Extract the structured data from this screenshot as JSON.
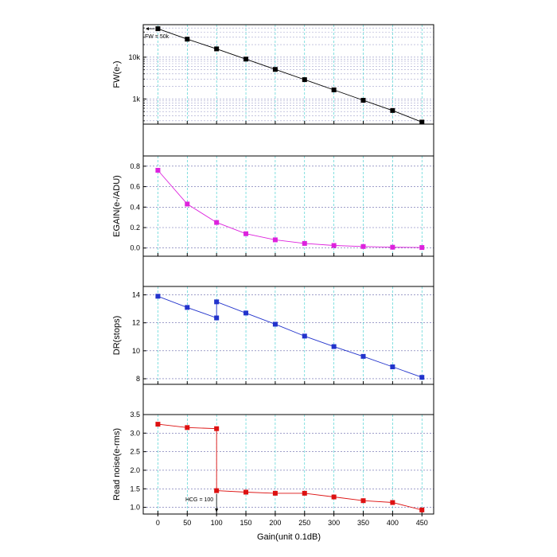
{
  "chart_data": [
    {
      "type": "line",
      "ylabel": "FW(e-)",
      "yscale": "log",
      "ylim": [
        250,
        60000
      ],
      "yticks": [
        1000,
        10000
      ],
      "ytick_labels": [
        "1k",
        "10k"
      ],
      "x": [
        0,
        50,
        100,
        150,
        200,
        250,
        300,
        350,
        400,
        450
      ],
      "y": [
        48000,
        27000,
        15800,
        9000,
        5100,
        2900,
        1650,
        930,
        530,
        280
      ],
      "color": "#000000",
      "annotation": "FW = 50k",
      "grid": true
    },
    {
      "type": "line",
      "ylabel": "EGAIN(e-/ADU)",
      "ylim": [
        -0.08,
        0.9
      ],
      "yticks": [
        0.0,
        0.2,
        0.4,
        0.6,
        0.8
      ],
      "ytick_labels": [
        "0.0",
        "0.2",
        "0.4",
        "0.6",
        "0.8"
      ],
      "x": [
        0,
        50,
        100,
        150,
        200,
        250,
        300,
        350,
        400,
        450
      ],
      "y": [
        0.76,
        0.43,
        0.25,
        0.14,
        0.08,
        0.045,
        0.025,
        0.015,
        0.008,
        0.005
      ],
      "color": "#dd22dd",
      "grid": true
    },
    {
      "type": "line",
      "ylabel": "DR(stops)",
      "ylim": [
        7.6,
        14.6
      ],
      "yticks": [
        8,
        10,
        12,
        14
      ],
      "ytick_labels": [
        "8",
        "10",
        "12",
        "14"
      ],
      "x": [
        0,
        50,
        100,
        100,
        150,
        200,
        250,
        300,
        350,
        400,
        450
      ],
      "y": [
        13.9,
        13.1,
        12.35,
        13.5,
        12.7,
        11.9,
        11.05,
        10.3,
        9.6,
        8.85,
        8.1
      ],
      "color": "#2233cc",
      "grid": true
    },
    {
      "type": "line",
      "ylabel": "Read noise(e-rms)",
      "ylim": [
        0.82,
        3.5
      ],
      "yticks": [
        1.0,
        1.5,
        2.0,
        2.5,
        3.0,
        3.5
      ],
      "ytick_labels": [
        "1.0",
        "1.5",
        "2.0",
        "2.5",
        "3.0",
        "3.5"
      ],
      "x": [
        0,
        50,
        100,
        100,
        150,
        200,
        250,
        300,
        350,
        400,
        450
      ],
      "y": [
        3.24,
        3.15,
        3.12,
        1.45,
        1.41,
        1.38,
        1.38,
        1.28,
        1.18,
        1.13,
        0.93
      ],
      "color": "#dd1111",
      "annotation": "HCG = 100",
      "grid": true
    }
  ],
  "shared_x": {
    "xlabel": "Gain(unit 0.1dB)",
    "xlim": [
      -25,
      470
    ],
    "xticks": [
      0,
      50,
      100,
      150,
      200,
      250,
      300,
      350,
      400,
      450
    ],
    "xtick_labels": [
      "0",
      "50",
      "100",
      "150",
      "200",
      "250",
      "300",
      "350",
      "400",
      "450"
    ]
  },
  "colors": {
    "x_grid": "#33cccc",
    "y_grid": "#6666aa",
    "frame": "#000000"
  }
}
